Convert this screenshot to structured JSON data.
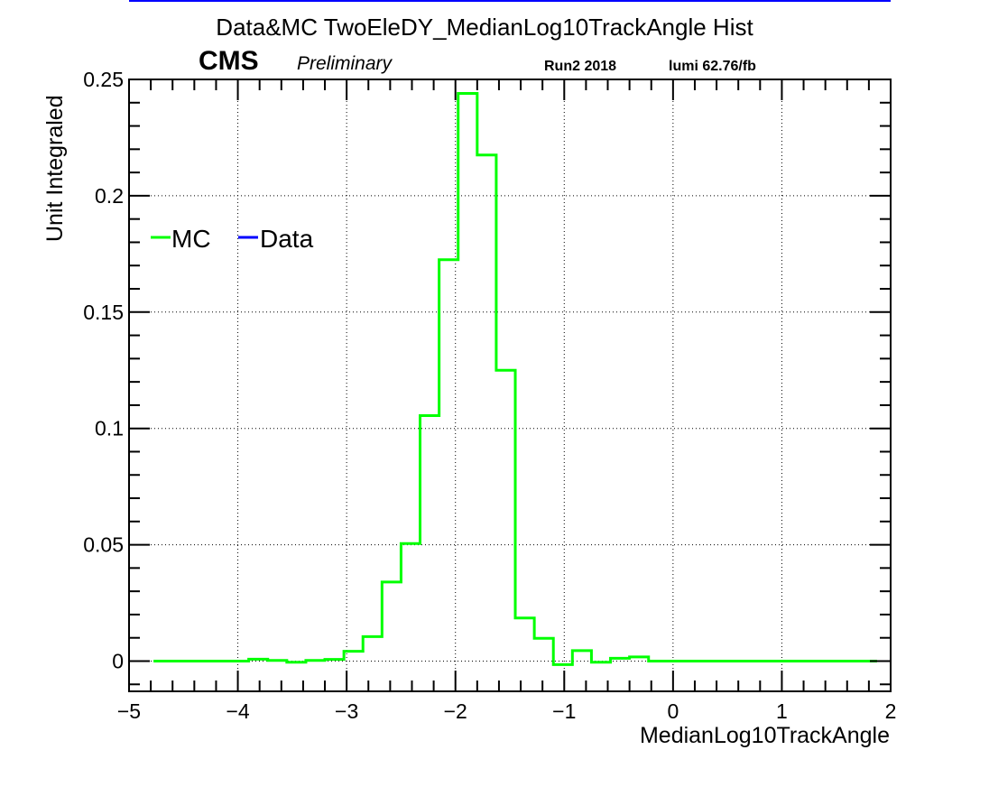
{
  "header": {
    "title": "Data&MC TwoEleDY_MedianLog10TrackAngle Hist",
    "experiment": "CMS",
    "status": "Preliminary",
    "run": "Run2 2018",
    "lumi": "lumi 62.76/fb"
  },
  "colors": {
    "mc": "#00ff00",
    "data": "#0000ff",
    "frame": "#000000",
    "grid": "#000000"
  },
  "chart_data": {
    "type": "histogram",
    "title": "Data&MC TwoEleDY_MedianLog10TrackAngle Hist",
    "xlabel": "MedianLog10TrackAngle",
    "ylabel": "Unit Integraled",
    "xlim": [
      -5,
      2
    ],
    "ylim": [
      -0.013,
      0.25
    ],
    "grid": true,
    "legend_position": "upper-left",
    "x_ticks": [
      -5,
      -4,
      -3,
      -2,
      -1,
      0,
      1,
      2
    ],
    "x_tick_labels": [
      "−5",
      "−4",
      "−3",
      "−2",
      "−1",
      "0",
      "1",
      "2"
    ],
    "y_ticks": [
      0,
      0.05,
      0.1,
      0.15,
      0.2,
      0.25
    ],
    "y_tick_labels": [
      "0",
      "0.05",
      "0.1",
      "0.15",
      "0.2",
      "0.25"
    ],
    "series": [
      {
        "name": "MC",
        "bin_edges": [
          -4.775,
          -4.6,
          -4.425,
          -4.25,
          -4.075,
          -3.9,
          -3.725,
          -3.55,
          -3.375,
          -3.2,
          -3.025,
          -2.85,
          -2.675,
          -2.5,
          -2.325,
          -2.15,
          -1.975,
          -1.8,
          -1.625,
          -1.45,
          -1.275,
          -1.1,
          -0.925,
          -0.75,
          -0.575,
          -0.4,
          -0.225,
          -0.05,
          0.125,
          0.3,
          0.475,
          0.65,
          0.825,
          1.0,
          1.175,
          1.35,
          1.525,
          1.7,
          1.875
        ],
        "values": [
          0,
          0,
          0,
          0,
          0,
          0.0008,
          0.0003,
          -0.0005,
          0.0003,
          0.0007,
          0.0042,
          0.0105,
          0.034,
          0.0505,
          0.1055,
          0.1725,
          0.244,
          0.2175,
          0.125,
          0.0185,
          0.0098,
          -0.0015,
          0.0045,
          -0.0005,
          0.0012,
          0.0018,
          0,
          0,
          0,
          0,
          0,
          0,
          0,
          0,
          0,
          0,
          0,
          0
        ]
      },
      {
        "name": "Data",
        "bin_edges": [],
        "values": []
      }
    ]
  }
}
